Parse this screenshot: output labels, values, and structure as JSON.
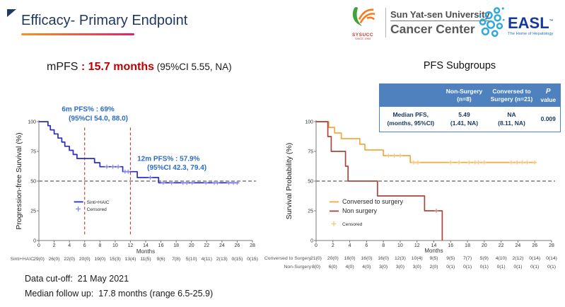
{
  "slide": {
    "title": "Efficacy- Primary Endpoint",
    "footer": {
      "data_cutoff": "Data cut-off:  21 May 2021",
      "median_followup": "Median follow up:  17.8 months (range 6.5-25.9)"
    }
  },
  "colors": {
    "title_navy": "#1F3864",
    "accent_red": "#C00000",
    "table_header_blue": "#4E81BD",
    "annotation_blue": "#2B6BC8",
    "km_blue": "#2B2BC8",
    "surgery_orange": "#F5A83B",
    "non_surgery_red": "#AB443E"
  },
  "logos": {
    "sysucc": {
      "acronym": "SYSUCC",
      "since": "SINCE 1964",
      "university": "Sun Yat-sen University",
      "center": "Cancer Center"
    },
    "easl": {
      "name": "EASL",
      "trademark": "™",
      "tagline": "The Home of Hepatology"
    }
  },
  "left_panel": {
    "headline": {
      "prefix": "mPFS ",
      "value": ": 15.7 months",
      "ci": " (95%CI 5.55, NA)"
    }
  },
  "right_panel": {
    "title": "PFS Subgroups",
    "table": {
      "columns": [
        {
          "line1": "",
          "line2": ""
        },
        {
          "line1": "Non-Surgery",
          "line2": "(n=8)"
        },
        {
          "line1": "Conversed to",
          "line2": "Surgery (n=21)"
        },
        {
          "line1": "P",
          "line2": "value"
        }
      ],
      "rows": [
        {
          "label1": "Median PFS,",
          "label2": "(months, 95%CI)",
          "col1_line1": "5.49",
          "col1_line2": "(1.41, NA)",
          "col2_line1": "NA",
          "col2_line2": "(8.11, NA)",
          "p": "0.009"
        }
      ]
    }
  },
  "chart_data": [
    {
      "type": "line",
      "subtype": "kaplan-meier",
      "title": "",
      "xlabel": "Months",
      "ylabel": "Progression-free Survival (%)",
      "xlim": [
        0,
        28
      ],
      "ylim": [
        0,
        100
      ],
      "xticks": [
        0,
        2,
        4,
        6,
        8,
        10,
        12,
        14,
        16,
        18,
        20,
        22,
        24,
        26,
        28
      ],
      "yticks": [
        0,
        25,
        50,
        75,
        100
      ],
      "grid": false,
      "annotation_color": "#2B6BC8",
      "reflines": {
        "h": [
          {
            "y": 50
          }
        ],
        "v": [
          {
            "x": 6,
            "color": "#C0392B"
          },
          {
            "x": 12,
            "color": "#C0392B"
          }
        ]
      },
      "annotations": [
        {
          "text": "6m PFS% : 69%",
          "x": 3.0,
          "y": 108.5
        },
        {
          "text": "(95%CI 54.0, 88.0)",
          "x": 3.9,
          "y": 101
        },
        {
          "text": "12m PFS% : 57.9%",
          "x": 12.9,
          "y": 67
        },
        {
          "text": "(95%CI 42.3, 79.4)",
          "x": 14.2,
          "y": 59.5
        }
      ],
      "legend": {
        "x": 4.6,
        "y": 31,
        "items": [
          {
            "type": "line",
            "label": "Sinti+HAIC",
            "color": "#2B2BC8",
            "size": 6.5
          },
          {
            "type": "plus",
            "label": "Censored",
            "color": "#8A8AE8",
            "size": 6.5
          }
        ]
      },
      "series": [
        {
          "name": "Sinti+HAIC",
          "color": "#2B2BC8",
          "censor_color": "#8A8AE8",
          "steps": [
            [
              0,
              100
            ],
            [
              1.2,
              100
            ],
            [
              1.2,
              96.6
            ],
            [
              1.5,
              96.6
            ],
            [
              1.5,
              93.1
            ],
            [
              2.0,
              93.1
            ],
            [
              2.0,
              89.7
            ],
            [
              2.5,
              89.7
            ],
            [
              2.5,
              86.2
            ],
            [
              3.0,
              86.2
            ],
            [
              3.0,
              82.8
            ],
            [
              3.4,
              82.8
            ],
            [
              3.4,
              79.3
            ],
            [
              4.0,
              79.3
            ],
            [
              4.0,
              75.9
            ],
            [
              4.5,
              75.9
            ],
            [
              4.5,
              72.4
            ],
            [
              5.0,
              72.4
            ],
            [
              5.0,
              69
            ],
            [
              7.3,
              69
            ],
            [
              7.3,
              65.5
            ],
            [
              8.0,
              65.5
            ],
            [
              8.0,
              62.1
            ],
            [
              11.0,
              62.1
            ],
            [
              11.0,
              57.9
            ],
            [
              12.9,
              57.9
            ],
            [
              12.9,
              53
            ],
            [
              15.7,
              53
            ],
            [
              15.7,
              48.6
            ],
            [
              26.2,
              48.6
            ]
          ],
          "censors": [
            [
              8.9,
              62.1
            ],
            [
              9.7,
              62.1
            ],
            [
              10.4,
              62.1
            ],
            [
              11.3,
              57.9
            ],
            [
              11.7,
              57.9
            ],
            [
              14.6,
              53
            ],
            [
              16.3,
              48.6
            ],
            [
              17.4,
              48.6
            ],
            [
              18.9,
              48.6
            ],
            [
              19.4,
              48.6
            ],
            [
              20.1,
              48.6
            ],
            [
              21.9,
              48.6
            ],
            [
              23.0,
              48.6
            ],
            [
              23.4,
              48.6
            ],
            [
              24.9,
              48.6
            ],
            [
              25.5,
              48.6
            ],
            [
              26.0,
              48.6
            ]
          ]
        }
      ],
      "at_risk": {
        "rows": [
          {
            "label": "Sinti+HAIC",
            "values": [
              "29(0)",
              "26(0)",
              "22(0)",
              "20(0)",
              "19(0)",
              "15(3)",
              "13(4)",
              "11(5)",
              "9(6)",
              "7(8)",
              "5(10)",
              "4(11)",
              "2(13)",
              "0(15)",
              "0(15)"
            ]
          }
        ]
      }
    },
    {
      "type": "line",
      "subtype": "kaplan-meier",
      "title": "PFS Subgroups",
      "xlabel": "Months",
      "ylabel": "Survival Probability (%)",
      "xlim": [
        0,
        28
      ],
      "ylim": [
        0,
        100
      ],
      "xticks": [
        0,
        2,
        4,
        6,
        8,
        10,
        12,
        14,
        16,
        18,
        20,
        22,
        24,
        26,
        28
      ],
      "yticks": [
        0,
        25,
        50,
        75,
        100
      ],
      "grid": false,
      "annotation_color": "#2B6BC8",
      "reflines": {
        "h": [
          {
            "y": 50
          }
        ],
        "v": []
      },
      "annotations": [],
      "legend": {
        "x": 1.6,
        "y": 31,
        "items": [
          {
            "type": "line",
            "label": "Conversed to surgery",
            "color": "#F5A83B",
            "size": 9
          },
          {
            "type": "line",
            "label": "Non surgery",
            "color": "#AB443E",
            "size": 9
          },
          {
            "type": "plus",
            "label": "Censored",
            "color": "#F7C87E",
            "size": 6.5,
            "gap": 5
          }
        ]
      },
      "series": [
        {
          "name": "Conversed to surgery",
          "color": "#F5A83B",
          "censor_color": "#F7C87E",
          "steps": [
            [
              0,
              100
            ],
            [
              1.5,
              100
            ],
            [
              1.5,
              95.2
            ],
            [
              2.2,
              95.2
            ],
            [
              2.2,
              90.5
            ],
            [
              3.0,
              90.5
            ],
            [
              3.0,
              85.7
            ],
            [
              5.2,
              85.7
            ],
            [
              5.2,
              81
            ],
            [
              5.8,
              81
            ],
            [
              5.8,
              76.2
            ],
            [
              8.0,
              76.2
            ],
            [
              8.0,
              71.4
            ],
            [
              11.2,
              71.4
            ],
            [
              11.2,
              65.7
            ],
            [
              26.2,
              65.7
            ]
          ],
          "censors": [
            [
              8.6,
              71.4
            ],
            [
              9.3,
              71.4
            ],
            [
              10.0,
              71.4
            ],
            [
              11.6,
              65.7
            ],
            [
              12.1,
              65.7
            ],
            [
              16.0,
              65.7
            ],
            [
              17.0,
              65.7
            ],
            [
              18.2,
              65.7
            ],
            [
              18.9,
              65.7
            ],
            [
              19.3,
              65.7
            ],
            [
              20.0,
              65.7
            ],
            [
              23.2,
              65.7
            ],
            [
              23.9,
              65.7
            ],
            [
              24.5,
              65.7
            ],
            [
              25.1,
              65.7
            ],
            [
              26.0,
              65.7
            ]
          ]
        },
        {
          "name": "Non surgery",
          "color": "#AB443E",
          "censor_color": "#D98A86",
          "steps": [
            [
              0,
              100
            ],
            [
              1.4,
              100
            ],
            [
              1.4,
              87.5
            ],
            [
              1.8,
              87.5
            ],
            [
              1.8,
              75
            ],
            [
              3.5,
              75
            ],
            [
              3.5,
              62.5
            ],
            [
              3.8,
              62.5
            ],
            [
              3.8,
              50
            ],
            [
              7.3,
              50
            ],
            [
              7.3,
              37.5
            ],
            [
              12.9,
              37.5
            ],
            [
              12.9,
              25
            ],
            [
              15.0,
              25
            ],
            [
              15.0,
              0
            ]
          ],
          "censors": [
            [
              14.3,
              25
            ]
          ]
        }
      ],
      "at_risk": {
        "rows": [
          {
            "label": "Conversed to Surgery",
            "values": [
              "21(0)",
              "20(0)",
              "18(0)",
              "16(0)",
              "16(0)",
              "12(3)",
              "10(4)",
              "9(5)",
              "9(5)",
              "7(7)",
              "5(9)",
              "4(10)",
              "2(12)",
              "0(14)",
              "0(14)"
            ]
          },
          {
            "label": "Non-Surgery",
            "values": [
              "8(0)",
              "6(0)",
              "4(0)",
              "4(0)",
              "3(0)",
              "3(0)",
              "3(0)",
              "2(0)",
              "0(1)",
              "0(1)",
              "0(1)",
              "0(1)",
              "0(1)",
              "0(1)",
              "0(1)"
            ]
          }
        ]
      }
    }
  ]
}
